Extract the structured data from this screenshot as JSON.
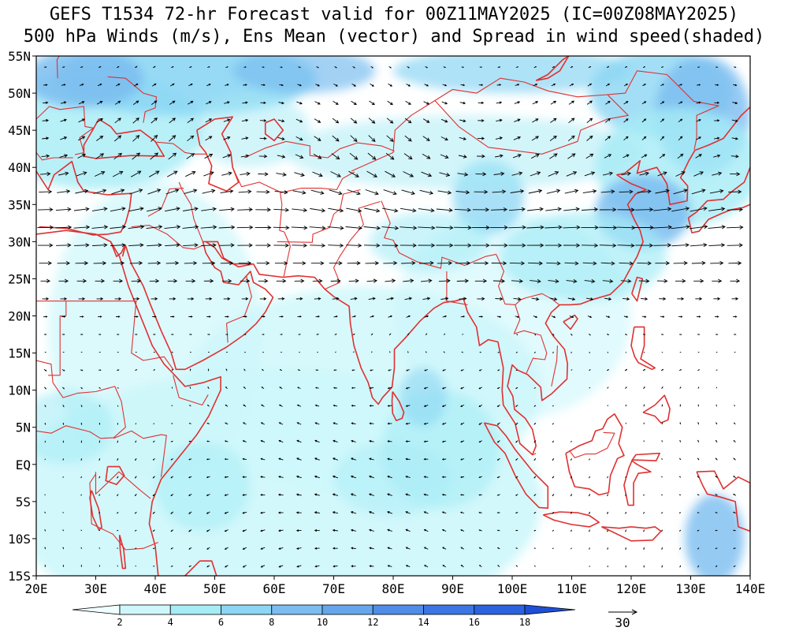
{
  "title_line1": "GEFS T1534 72-hr Forecast valid for 00Z11MAY2025 (IC=00Z08MAY2025)",
  "title_line2": "500 hPa Winds (m/s), Ens Mean (vector) and Spread in wind speed(shaded)",
  "lat_labels": [
    "55N",
    "50N",
    "45N",
    "40N",
    "35N",
    "30N",
    "25N",
    "20N",
    "15N",
    "10N",
    "5N",
    "EQ",
    "5S",
    "10S",
    "15S"
  ],
  "lon_labels": [
    "20E",
    "30E",
    "40E",
    "50E",
    "60E",
    "70E",
    "80E",
    "90E",
    "100E",
    "110E",
    "120E",
    "130E",
    "140E"
  ],
  "colorbar": {
    "labels": [
      "2",
      "4",
      "6",
      "8",
      "10",
      "12",
      "14",
      "16",
      "18"
    ],
    "colors": [
      "#f0ffff",
      "#cdf7fb",
      "#a6ecf6",
      "#8cd6f4",
      "#7bbdf0",
      "#66a6ec",
      "#4f8de8",
      "#3b76e4",
      "#2b62de",
      "#1e4fd6"
    ]
  },
  "vector_reference": {
    "label": "30"
  },
  "map": {
    "extent": {
      "lon": [
        20,
        140
      ],
      "lat": [
        -15,
        55
      ]
    },
    "coastline_color": "#e03030",
    "shading_description": "higher spread over northwestern Europe/Russia near 50-55N, northeast China/Japan near 35-45N, and southern Tibet plateau"
  }
}
